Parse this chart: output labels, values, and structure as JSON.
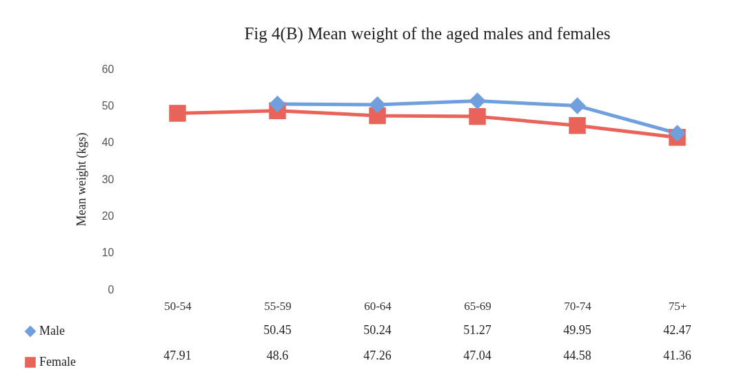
{
  "chart_data": {
    "type": "line",
    "title": "Fig 4(B) Mean weight of the aged males and females",
    "ylabel": "Mean weight (kgs)",
    "categories": [
      "50-54",
      "55-59",
      "60-64",
      "65-69",
      "70-74",
      "75+"
    ],
    "series": [
      {
        "name": "Male",
        "color": "#6f9fdc",
        "marker": "diamond",
        "values": [
          null,
          50.45,
          50.24,
          51.27,
          49.95,
          42.47
        ]
      },
      {
        "name": "Female",
        "color": "#e8645a",
        "marker": "square",
        "values": [
          47.91,
          48.6,
          47.26,
          47.04,
          44.58,
          41.36
        ]
      }
    ],
    "ylim": [
      0,
      60
    ],
    "yticks": [
      0,
      10,
      20,
      30,
      40,
      50,
      60
    ],
    "grid": false,
    "legend": "bottom left",
    "data_labels": true
  }
}
